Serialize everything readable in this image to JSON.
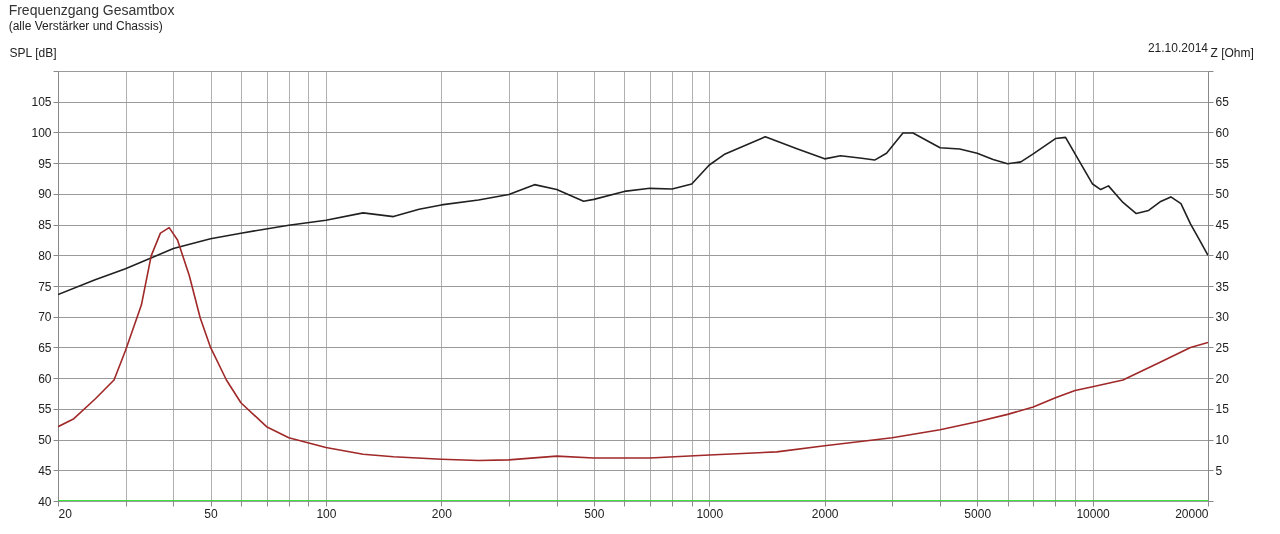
{
  "chart_data": {
    "type": "line",
    "title": "Frequenzgang Gesamtbox",
    "subtitle": "(alle Verstärker und Chassis)",
    "ylabel": "SPL [dB]",
    "y2label": "Z [Ohm]",
    "annotations": [
      "21.10.2014"
    ],
    "log": "x",
    "grid": true,
    "legend": false,
    "line_style": "solid",
    "marker": "none",
    "xlim": [
      20,
      20000
    ],
    "ylim": [
      40,
      110
    ],
    "y2lim": [
      0,
      70
    ],
    "xticks": [
      20,
      {
        "value": 30,
        "label": null
      },
      {
        "value": 40,
        "label": null
      },
      50,
      {
        "value": 60,
        "label": null
      },
      {
        "value": 70,
        "label": null
      },
      {
        "value": 80,
        "label": null
      },
      {
        "value": 90,
        "label": null
      },
      100,
      200,
      {
        "value": 300,
        "label": null
      },
      {
        "value": 400,
        "label": null
      },
      500,
      {
        "value": 600,
        "label": null
      },
      {
        "value": 700,
        "label": null
      },
      {
        "value": 800,
        "label": null
      },
      {
        "value": 900,
        "label": null
      },
      1000,
      2000,
      {
        "value": 3000,
        "label": null
      },
      {
        "value": 4000,
        "label": null
      },
      5000,
      {
        "value": 6000,
        "label": null
      },
      {
        "value": 7000,
        "label": null
      },
      {
        "value": 8000,
        "label": null
      },
      {
        "value": 9000,
        "label": null
      },
      10000,
      20000
    ],
    "yticks": [
      40,
      45,
      50,
      55,
      60,
      65,
      70,
      75,
      80,
      85,
      90,
      95,
      100,
      105,
      {
        "value": 110,
        "label": null
      }
    ],
    "y2ticks": [
      {
        "value": 0,
        "label": null
      },
      5,
      10,
      15,
      20,
      25,
      30,
      35,
      40,
      45,
      50,
      55,
      60,
      65,
      {
        "value": 70,
        "label": null
      }
    ],
    "series": [
      {
        "color": "#202020",
        "x": [
          20,
          25,
          30,
          40,
          50,
          60,
          80,
          100,
          125,
          150,
          175,
          200,
          250,
          300,
          350,
          400,
          470,
          500,
          600,
          700,
          800,
          900,
          1000,
          1100,
          1400,
          1700,
          2000,
          2200,
          2500,
          2700,
          2900,
          3200,
          3400,
          4000,
          4500,
          5000,
          5500,
          6000,
          6500,
          7000,
          8000,
          8500,
          9000,
          10000,
          10500,
          11000,
          12000,
          13000,
          14000,
          15000,
          16000,
          17000,
          18000,
          19000,
          20000
        ],
        "values": [
          73.6,
          76,
          77.8,
          81.1,
          82.7,
          83.6,
          84.9,
          85.7,
          86.9,
          86.3,
          87.5,
          88.2,
          89,
          89.9,
          91.5,
          90.7,
          88.8,
          89.1,
          90.4,
          90.9,
          90.8,
          91.6,
          94.7,
          96.5,
          99.3,
          97.3,
          95.7,
          96.2,
          95.8,
          95.5,
          96.6,
          99.9,
          99.9,
          97.5,
          97.3,
          96.6,
          95.6,
          94.9,
          95.2,
          96.5,
          99,
          99.2,
          96.5,
          91.6,
          90.7,
          91.3,
          88.6,
          86.8,
          87.3,
          88.7,
          89.5,
          88.4,
          85.1,
          82.5,
          80
        ]
      },
      {
        "color": "#00dd00",
        "x": [
          20,
          20000
        ],
        "values": [
          40,
          40
        ]
      },
      {
        "color": "#a02828",
        "axis": "y2",
        "x": [
          20,
          22,
          25,
          28,
          30,
          33,
          35,
          37,
          39,
          41,
          44,
          47,
          50,
          55,
          60,
          70,
          80,
          100,
          125,
          150,
          200,
          250,
          300,
          400,
          500,
          700,
          1000,
          1500,
          2000,
          3000,
          4000,
          5000,
          6000,
          7000,
          8000,
          9000,
          10000,
          12000,
          15000,
          18000,
          20000
        ],
        "values": [
          12.1,
          13.4,
          16.6,
          19.7,
          24.5,
          31.9,
          39.9,
          43.6,
          44.5,
          42.5,
          36.7,
          29.8,
          25,
          19.7,
          16,
          12.1,
          10.3,
          8.7,
          7.6,
          7.2,
          6.8,
          6.6,
          6.7,
          7.3,
          7,
          7,
          7.5,
          8,
          9,
          10.3,
          11.6,
          12.9,
          14.1,
          15.3,
          16.8,
          18,
          18.6,
          19.7,
          22.6,
          25,
          25.8
        ]
      }
    ]
  }
}
